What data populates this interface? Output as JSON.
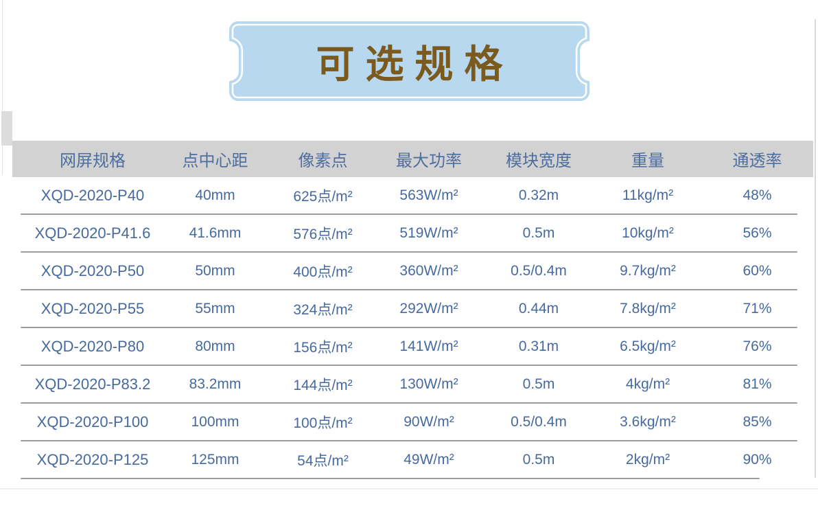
{
  "banner": {
    "title": "可选规格"
  },
  "colors": {
    "banner_fill": "#b7d8ef",
    "banner_inner_border": "#ffffff",
    "title_text": "#7b5a1f",
    "header_bg": "#d2d2d2",
    "header_text": "#4e6e9f",
    "cell_text": "#476a9e",
    "separator": "#9b9b9b"
  },
  "table": {
    "headers": [
      "网屏规格",
      "点中心距",
      "像素点",
      "最大功率",
      "模块宽度",
      "重量",
      "通透率"
    ],
    "rows": [
      [
        "XQD-2020-P40",
        "40mm",
        "625点/m²",
        "563W/m²",
        "0.32m",
        "11kg/m²",
        "48%"
      ],
      [
        "XQD-2020-P41.6",
        "41.6mm",
        "576点/m²",
        "519W/m²",
        "0.5m",
        "10kg/m²",
        "56%"
      ],
      [
        "XQD-2020-P50",
        "50mm",
        "400点/m²",
        "360W/m²",
        "0.5/0.4m",
        "9.7kg/m²",
        "60%"
      ],
      [
        "XQD-2020-P55",
        "55mm",
        "324点/m²",
        "292W/m²",
        "0.44m",
        "7.8kg/m²",
        "71%"
      ],
      [
        "XQD-2020-P80",
        "80mm",
        "156点/m²",
        "141W/m²",
        "0.31m",
        "6.5kg/m²",
        "76%"
      ],
      [
        "XQD-2020-P83.2",
        "83.2mm",
        "144点/m²",
        "130W/m²",
        "0.5m",
        "4kg/m²",
        "81%"
      ],
      [
        "XQD-2020-P100",
        "100mm",
        "100点/m²",
        "90W/m²",
        "0.5/0.4m",
        "3.6kg/m²",
        "85%"
      ],
      [
        "XQD-2020-P125",
        "125mm",
        "54点/m²",
        "49W/m²",
        "0.5m",
        "2kg/m²",
        "90%"
      ]
    ]
  }
}
